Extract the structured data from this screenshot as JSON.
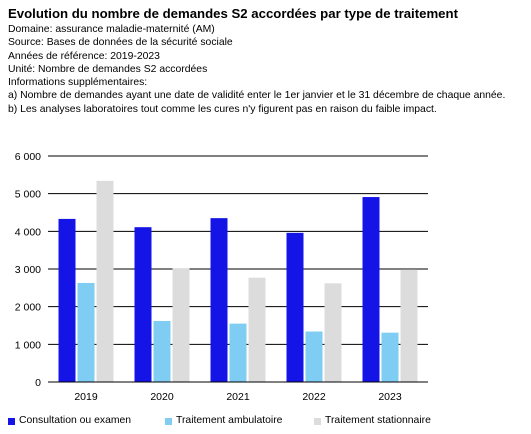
{
  "header": {
    "title": "Evolution du nombre de demandes S2 accordées par type de traitement",
    "lines": [
      "Domaine: assurance maladie-maternité (AM)",
      "Source: Bases de données de la sécurité sociale",
      "Années de référence: 2019-2023",
      "Unité: Nombre de demandes S2 accordées",
      "Informations supplémentaires:",
      "a) Nombre de demandes ayant une date de validité enter le 1er janvier et le 31 décembre de chaque année.",
      "b) Les analyses laboratoires tout comme les cures n'y figurent pas en raison du faible impact."
    ]
  },
  "chart_data": {
    "type": "bar",
    "title": "Evolution du nombre de demandes S2 accordées par type de traitement",
    "xlabel": "",
    "ylabel": "",
    "categories": [
      "2019",
      "2020",
      "2021",
      "2022",
      "2023"
    ],
    "series": [
      {
        "name": "Consultation ou examen",
        "color": "#1414e6",
        "values": [
          4330,
          4110,
          4350,
          3960,
          4910
        ]
      },
      {
        "name": "Traitement ambulatoire",
        "color": "#7fcdf2",
        "values": [
          2630,
          1620,
          1550,
          1340,
          1310
        ]
      },
      {
        "name": "Traitement stationnaire",
        "color": "#dcdcdc",
        "values": [
          5340,
          3020,
          2770,
          2620,
          2990
        ]
      }
    ],
    "ylim": [
      0,
      6000
    ],
    "yticks": [
      0,
      1000,
      2000,
      3000,
      4000,
      5000,
      6000
    ],
    "ytick_labels": [
      "0",
      "1 000",
      "2 000",
      "3 000",
      "4 000",
      "5 000",
      "6 000"
    ],
    "grid": true,
    "legend_position": "bottom"
  }
}
